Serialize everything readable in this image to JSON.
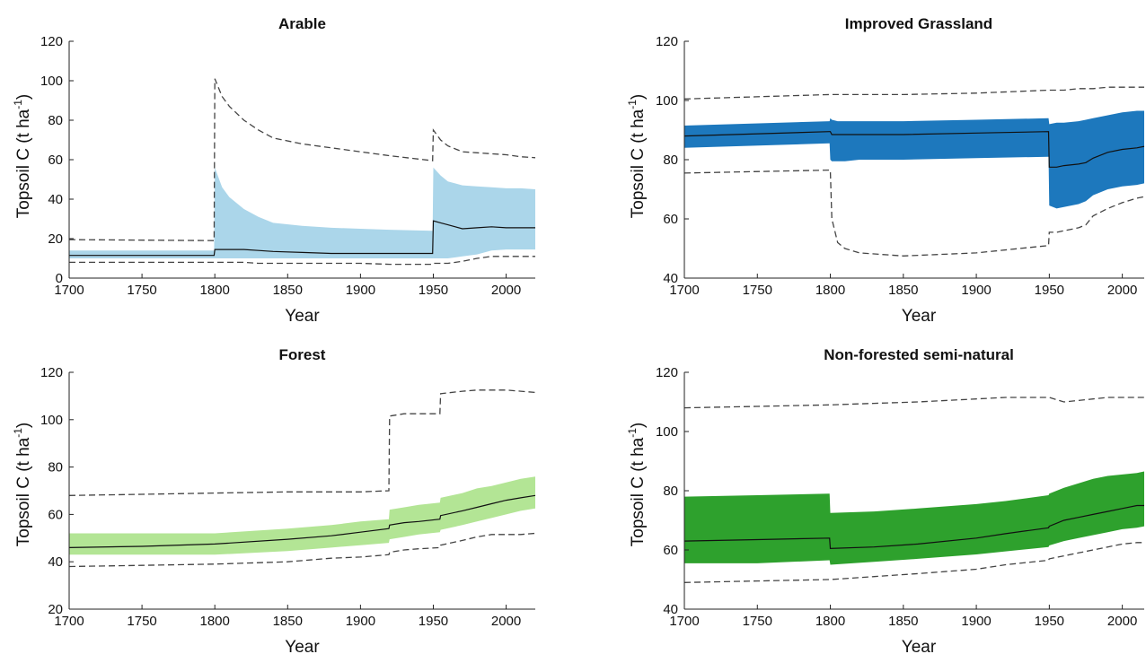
{
  "chart_data": [
    {
      "type": "area",
      "title": "Arable",
      "xlabel": "Year",
      "ylabel_main": "Topsoil C (t ha",
      "ylabel_sup": "-1",
      "ylabel_close": ")",
      "xlim": [
        1700,
        2020
      ],
      "ylim": [
        0,
        120
      ],
      "xticks": [
        1700,
        1750,
        1800,
        1850,
        1900,
        1950,
        2000
      ],
      "yticks": [
        0,
        20,
        40,
        60,
        80,
        100,
        120
      ],
      "band_color": "#abd6ea",
      "x": [
        1700,
        1799.5,
        1800,
        1805,
        1810,
        1820,
        1830,
        1840,
        1860,
        1880,
        1900,
        1920,
        1949.5,
        1950,
        1955,
        1960,
        1970,
        1980,
        1990,
        2000,
        2010,
        2020
      ],
      "series": [
        {
          "role": "upper_dashed",
          "values": [
            19.5,
            19,
            101,
            92,
            87,
            80,
            75,
            71,
            68,
            66,
            64,
            62,
            59.5,
            75,
            70,
            67,
            64,
            63.5,
            63,
            62.5,
            61.5,
            61
          ]
        },
        {
          "role": "band_upper",
          "values": [
            14,
            14,
            56,
            46,
            41,
            35,
            31,
            28,
            26.5,
            25.5,
            25,
            24.5,
            24,
            56,
            52,
            49,
            47,
            46.5,
            46,
            45.5,
            45.5,
            45
          ]
        },
        {
          "role": "median",
          "values": [
            11.5,
            11.5,
            14.5,
            14.5,
            14.5,
            14.5,
            14,
            13.5,
            13,
            12.5,
            12.5,
            12.5,
            12.5,
            29,
            28,
            27,
            25,
            25.5,
            26,
            25.5,
            25.5,
            25.5
          ]
        },
        {
          "role": "band_lower",
          "values": [
            10,
            10,
            10,
            10,
            10,
            10,
            10,
            10,
            10,
            10,
            10,
            10,
            10,
            10,
            10,
            10,
            11,
            12,
            14,
            14.5,
            14.5,
            14.5
          ]
        },
        {
          "role": "lower_dashed",
          "values": [
            8,
            8,
            8,
            8,
            8,
            8,
            7.5,
            7.5,
            7.5,
            7.5,
            7.5,
            7,
            7,
            7.5,
            7.5,
            7.5,
            8.5,
            10,
            11,
            11,
            11,
            11
          ]
        }
      ]
    },
    {
      "type": "area",
      "title": "Improved Grassland",
      "xlabel": "Year",
      "ylabel_main": "Topsoil C (t ha",
      "ylabel_sup": "-1",
      "ylabel_close": ")",
      "xlim": [
        1700,
        2015
      ],
      "ylim": [
        40,
        120
      ],
      "xticks": [
        1700,
        1750,
        1800,
        1850,
        1900,
        1950,
        2000
      ],
      "yticks": [
        40,
        60,
        80,
        100,
        120
      ],
      "band_color": "#1d78bd",
      "x": [
        1700,
        1799.5,
        1800,
        1801,
        1805,
        1810,
        1820,
        1850,
        1900,
        1949.5,
        1950,
        1955,
        1960,
        1970,
        1975,
        1980,
        1990,
        2000,
        2010,
        2015
      ],
      "series": [
        {
          "role": "upper_dashed",
          "values": [
            100.5,
            102,
            102,
            102,
            102,
            102,
            102,
            102,
            102.5,
            103.5,
            103.5,
            103.5,
            103.5,
            104,
            104,
            104,
            104.5,
            104.5,
            104.5,
            104.5
          ]
        },
        {
          "role": "band_upper",
          "values": [
            91.5,
            93,
            94,
            93.5,
            93,
            93,
            93,
            93,
            93.5,
            94,
            92,
            92.5,
            92.5,
            93,
            93.5,
            94,
            95,
            96,
            96.5,
            96.5
          ]
        },
        {
          "role": "median",
          "values": [
            88,
            89.5,
            89.5,
            88.5,
            88.5,
            88.5,
            88.5,
            88.5,
            89,
            89.5,
            77.5,
            77.5,
            78,
            78.5,
            79,
            80.5,
            82.5,
            83.5,
            84,
            84.5
          ]
        },
        {
          "role": "band_lower",
          "values": [
            84,
            85.5,
            80,
            79.5,
            79.5,
            79.5,
            80,
            80,
            80.5,
            81,
            64.5,
            63.5,
            64,
            65,
            66,
            68,
            70,
            71,
            71.5,
            72
          ]
        },
        {
          "role": "lower_dashed",
          "values": [
            75.5,
            76.5,
            76.5,
            60,
            52,
            50,
            48.5,
            47.5,
            48.5,
            51,
            55.5,
            55.5,
            56,
            57,
            58,
            61,
            63.5,
            65.5,
            67,
            67.5
          ]
        }
      ]
    },
    {
      "type": "area",
      "title": "Forest",
      "xlabel": "Year",
      "ylabel_main": "Topsoil C (t ha",
      "ylabel_sup": "-1",
      "ylabel_close": ")",
      "xlim": [
        1700,
        2020
      ],
      "ylim": [
        20,
        120
      ],
      "xticks": [
        1700,
        1750,
        1800,
        1850,
        1900,
        1950,
        2000
      ],
      "yticks": [
        20,
        40,
        60,
        80,
        100,
        120
      ],
      "band_color": "#b3e595",
      "x": [
        1700,
        1750,
        1800,
        1850,
        1880,
        1900,
        1919.5,
        1920,
        1930,
        1940,
        1954.5,
        1955,
        1970,
        1980,
        1990,
        2000,
        2010,
        2020
      ],
      "series": [
        {
          "role": "upper_dashed",
          "values": [
            68,
            68.5,
            69,
            69.5,
            69.5,
            69.5,
            70,
            101.5,
            102.5,
            102.5,
            102.5,
            111,
            112,
            112.5,
            112.5,
            112.5,
            112,
            111.5
          ]
        },
        {
          "role": "band_upper",
          "values": [
            52,
            52,
            52,
            54,
            55.5,
            57,
            58,
            62,
            63,
            64,
            65,
            67,
            69,
            71,
            72,
            73.5,
            75,
            76
          ]
        },
        {
          "role": "median",
          "values": [
            46,
            46.5,
            47.5,
            49.5,
            51,
            52.5,
            54,
            55.5,
            56.5,
            57,
            58,
            59.5,
            61.5,
            63,
            64.5,
            66,
            67,
            68
          ]
        },
        {
          "role": "band_lower",
          "values": [
            43,
            43,
            43,
            44.5,
            46,
            47,
            48,
            49.5,
            50.5,
            51.5,
            52.5,
            53.5,
            55.5,
            57,
            58.5,
            60,
            61.5,
            62.5
          ]
        },
        {
          "role": "lower_dashed",
          "values": [
            38,
            38.5,
            39,
            40,
            41.5,
            42,
            43,
            44,
            45,
            45.5,
            46,
            47,
            49,
            50.5,
            51.5,
            51.5,
            51.5,
            52
          ]
        }
      ]
    },
    {
      "type": "area",
      "title": "Non-forested semi-natural",
      "xlabel": "Year",
      "ylabel_main": "Topsoil C (t ha",
      "ylabel_sup": "-1",
      "ylabel_close": ")",
      "xlim": [
        1700,
        2015
      ],
      "ylim": [
        40,
        120
      ],
      "xticks": [
        1700,
        1750,
        1800,
        1850,
        1900,
        1950,
        2000
      ],
      "yticks": [
        40,
        60,
        80,
        100,
        120
      ],
      "band_color": "#2ea12d",
      "x": [
        1700,
        1750,
        1799.5,
        1800,
        1830,
        1860,
        1900,
        1920,
        1949.5,
        1950,
        1960,
        1970,
        1980,
        1990,
        2000,
        2010,
        2015
      ],
      "series": [
        {
          "role": "upper_dashed",
          "values": [
            108,
            108.5,
            109,
            109,
            109.5,
            110,
            111,
            111.5,
            111.5,
            111.5,
            110,
            110.5,
            111,
            111.5,
            111.5,
            111.5,
            111.5
          ]
        },
        {
          "role": "band_upper",
          "values": [
            78,
            78.5,
            79,
            72.5,
            73,
            74,
            75.5,
            76.5,
            78.5,
            79,
            81,
            82.5,
            84,
            85,
            85.5,
            86,
            86.5
          ]
        },
        {
          "role": "median",
          "values": [
            63,
            63.5,
            64,
            60.5,
            61,
            62,
            64,
            65.5,
            67.5,
            68,
            70,
            71,
            72,
            73,
            74,
            75,
            75
          ]
        },
        {
          "role": "band_lower",
          "values": [
            55.5,
            55.5,
            56.5,
            55,
            56,
            57,
            58.5,
            59.5,
            61,
            61.5,
            63,
            64,
            65,
            66,
            67,
            67.5,
            68
          ]
        },
        {
          "role": "lower_dashed",
          "values": [
            49,
            49.5,
            50,
            50,
            51,
            52,
            53.5,
            55,
            56.5,
            57,
            58,
            59,
            60,
            61,
            62,
            62.5,
            62.5
          ]
        }
      ]
    }
  ]
}
